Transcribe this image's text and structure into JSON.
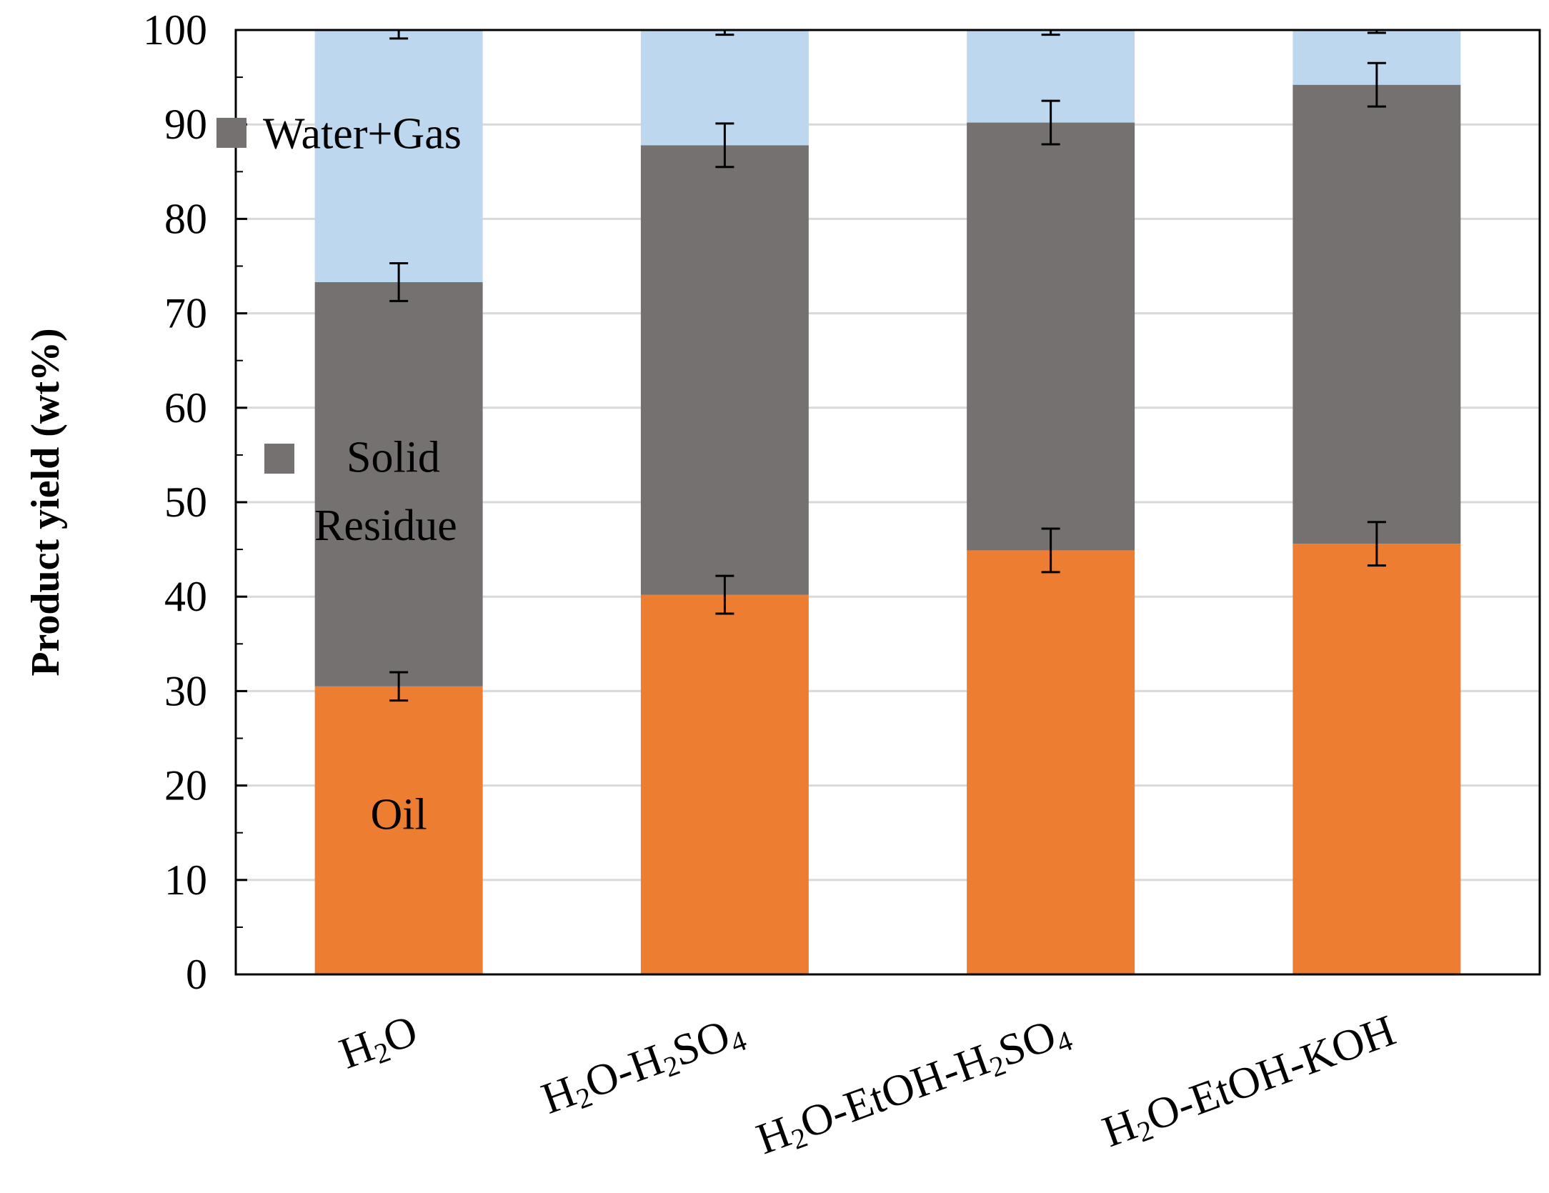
{
  "chart_data": {
    "type": "bar",
    "stacked": true,
    "ylabel": "Product yield (wt%)",
    "ylim": [
      0,
      100
    ],
    "yticks": [
      0,
      10,
      20,
      30,
      40,
      50,
      60,
      70,
      80,
      90,
      100
    ],
    "grid": true,
    "categories": [
      "H2O",
      "H2O-H2SO4",
      "H2O-EtOH-H2SO4",
      "H2O-EtOH-KOH"
    ],
    "category_labels": [
      [
        {
          "t": "H",
          "sub": false
        },
        {
          "t": "2",
          "sub": true
        },
        {
          "t": "O",
          "sub": false
        }
      ],
      [
        {
          "t": "H",
          "sub": false
        },
        {
          "t": "2",
          "sub": true
        },
        {
          "t": "O-H",
          "sub": false
        },
        {
          "t": "2",
          "sub": true
        },
        {
          "t": "SO",
          "sub": false
        },
        {
          "t": "4",
          "sub": true
        }
      ],
      [
        {
          "t": "H",
          "sub": false
        },
        {
          "t": "2",
          "sub": true
        },
        {
          "t": "O-EtOH-H",
          "sub": false
        },
        {
          "t": "2",
          "sub": true
        },
        {
          "t": "SO",
          "sub": false
        },
        {
          "t": "4",
          "sub": true
        }
      ],
      [
        {
          "t": "H",
          "sub": false
        },
        {
          "t": "2",
          "sub": true
        },
        {
          "t": "O-EtOH-KOH",
          "sub": false
        }
      ]
    ],
    "series": [
      {
        "name": "Oil",
        "color": "#ED7D31",
        "values": [
          30.5,
          40.2,
          44.9,
          45.6
        ],
        "error": [
          1.5,
          2.0,
          2.3,
          2.3
        ]
      },
      {
        "name": "Solid Residue",
        "color": "#767171",
        "values": [
          42.8,
          47.6,
          45.3,
          48.6
        ],
        "error": [
          2.0,
          2.3,
          2.3,
          2.3
        ]
      },
      {
        "name": "Water+Gas",
        "color": "#BDD7EE",
        "values": [
          26.7,
          12.2,
          9.8,
          5.8
        ],
        "error": [
          0.9,
          0.5,
          0.5,
          0.3
        ]
      }
    ],
    "series_labels": [
      {
        "series": "Oil",
        "lines": [
          "Oil"
        ]
      },
      {
        "series": "Solid Residue",
        "lines": [
          "Solid",
          "Residue"
        ]
      },
      {
        "series": "Water+Gas",
        "lines": [
          "Water+Gas"
        ]
      }
    ]
  }
}
